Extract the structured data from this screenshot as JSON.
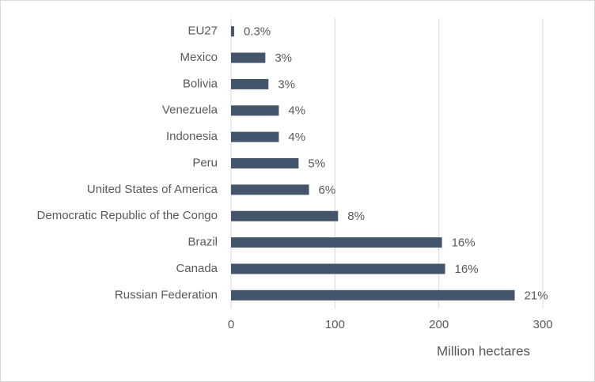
{
  "chart_data": {
    "type": "bar",
    "orientation": "horizontal",
    "categories": [
      "EU27",
      "Mexico",
      "Bolivia",
      "Venezuela",
      "Indonesia",
      "Peru",
      "United States of America",
      "Democratic Republic of the Congo",
      "Brazil",
      "Canada",
      "Russian Federation"
    ],
    "values": [
      3,
      33,
      36,
      46,
      46,
      65,
      75,
      103,
      203,
      206,
      273
    ],
    "share_labels": [
      "0.3%",
      "3%",
      "3%",
      "4%",
      "4%",
      "5%",
      "6%",
      "8%",
      "16%",
      "16%",
      "21%"
    ],
    "color": "#44546a",
    "xlabel": "Million hectares",
    "xlim": [
      0,
      300
    ],
    "xticks": [
      0,
      100,
      200,
      300
    ],
    "grid": true
  }
}
